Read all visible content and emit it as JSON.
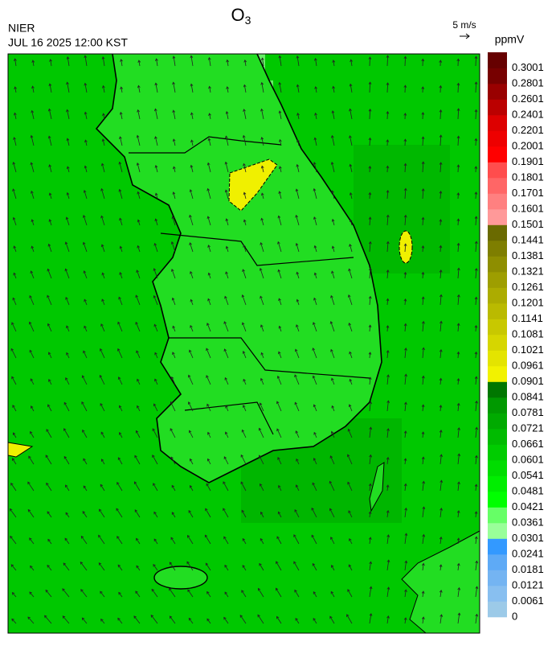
{
  "header": {
    "title": "O",
    "title_subscript": "3",
    "source": "NIER",
    "datetime": "JUL 16 2025 12:00 KST",
    "wind_scale": "5 m/s"
  },
  "colorbar": {
    "unit": "ppmV",
    "levels": [
      0,
      0.0061,
      0.0121,
      0.0181,
      0.0241,
      0.0301,
      0.0361,
      0.0421,
      0.0481,
      0.0541,
      0.0601,
      0.0661,
      0.0721,
      0.0781,
      0.0841,
      0.0901,
      0.0961,
      0.1021,
      0.1081,
      0.1141,
      0.1201,
      0.1261,
      0.1321,
      0.1381,
      0.1441,
      0.1501,
      0.1601,
      0.1701,
      0.1801,
      0.1901,
      0.2001,
      0.2201,
      0.2401,
      0.2601,
      0.2801,
      0.3001
    ],
    "colors": [
      "#9ccae8",
      "#88bff0",
      "#74b4f2",
      "#5eaaf6",
      "#3399ff",
      "#99ff99",
      "#66ff66",
      "#00ff00",
      "#00ee00",
      "#00dd00",
      "#00cc00",
      "#00bb00",
      "#00aa00",
      "#009900",
      "#007700",
      "#f2f200",
      "#e4e400",
      "#d6d600",
      "#c8c800",
      "#baba00",
      "#acac00",
      "#9e9e00",
      "#8e8e00",
      "#7e7e00",
      "#6a6a00",
      "#ff9999",
      "#ff8080",
      "#ff6666",
      "#ff4d4d",
      "#ff0000",
      "#ee0000",
      "#dd0000",
      "#bb0000",
      "#990000",
      "#770000",
      "#660000"
    ]
  }
}
